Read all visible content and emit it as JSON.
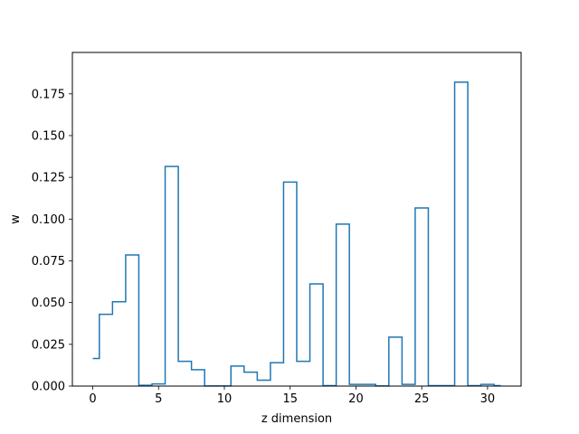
{
  "chart_data": {
    "type": "step",
    "title": "",
    "xlabel": "z dimension",
    "ylabel": "w",
    "xlim": [
      -1.55,
      32.55
    ],
    "ylim": [
      0,
      0.1998
    ],
    "xticks": [
      0,
      5,
      10,
      15,
      20,
      25,
      30
    ],
    "xtick_labels": [
      "0",
      "5",
      "10",
      "15",
      "20",
      "25",
      "30"
    ],
    "yticks": [
      0.0,
      0.025,
      0.05,
      0.075,
      0.1,
      0.125,
      0.15,
      0.175
    ],
    "ytick_labels": [
      "0.000",
      "0.025",
      "0.050",
      "0.075",
      "0.100",
      "0.125",
      "0.150",
      "0.175"
    ],
    "step_where": "mid",
    "grid": false,
    "line_color": "#1f77b4",
    "x": [
      0,
      1,
      2,
      3,
      4,
      5,
      6,
      7,
      8,
      9,
      10,
      11,
      12,
      13,
      14,
      15,
      16,
      17,
      18,
      19,
      20,
      21,
      22,
      23,
      24,
      25,
      26,
      27,
      28,
      29,
      30,
      31
    ],
    "y": [
      0.0165,
      0.043,
      0.0505,
      0.0785,
      0.0005,
      0.0013,
      0.1315,
      0.0148,
      0.0098,
      0.0001,
      0.0001,
      0.012,
      0.0083,
      0.0035,
      0.014,
      0.1222,
      0.0148,
      0.0612,
      0.0003,
      0.097,
      0.001,
      0.001,
      0.0001,
      0.0293,
      0.001,
      0.1067,
      0.0003,
      0.0003,
      0.182,
      0.0003,
      0.001,
      0.0003
    ]
  }
}
